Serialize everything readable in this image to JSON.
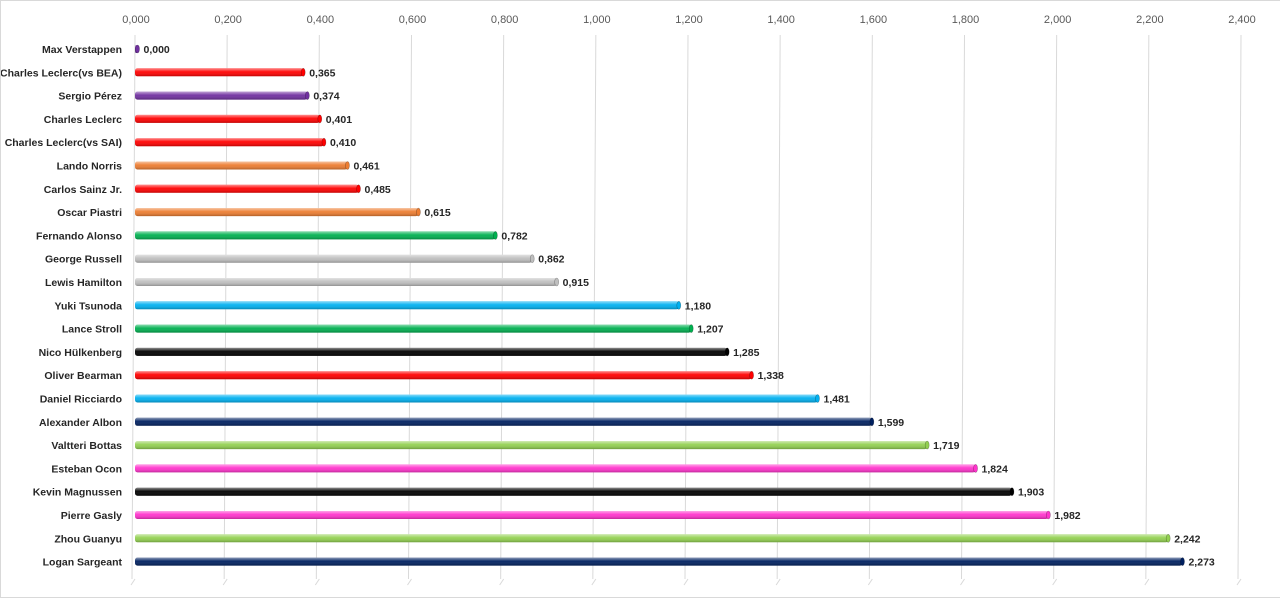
{
  "chart_data": {
    "type": "bar",
    "orientation": "horizontal",
    "title": "",
    "xlabel": "",
    "ylabel": "",
    "xlim": [
      0,
      2.4
    ],
    "xticks": [
      "0,000",
      "0,200",
      "0,400",
      "0,600",
      "0,800",
      "1,000",
      "1,200",
      "1,400",
      "1,600",
      "1,800",
      "2,000",
      "2,200",
      "2,400"
    ],
    "xtick_values": [
      0,
      0.2,
      0.4,
      0.6,
      0.8,
      1.0,
      1.2,
      1.4,
      1.6,
      1.8,
      2.0,
      2.2,
      2.4
    ],
    "x_axis_position": "top",
    "grid": true,
    "legend": "none",
    "categories": [
      "Max Verstappen",
      "Charles Leclerc(vs BEA)",
      "Sergio Pérez",
      "Charles Leclerc",
      "Charles Leclerc(vs SAI)",
      "Lando Norris",
      "Carlos Sainz Jr.",
      "Oscar Piastri",
      "Fernando Alonso",
      "George Russell",
      "Lewis Hamilton",
      "Yuki Tsunoda",
      "Lance Stroll",
      "Nico Hülkenberg",
      "Oliver Bearman",
      "Daniel Ricciardo",
      "Alexander Albon",
      "Valtteri Bottas",
      "Esteban Ocon",
      "Kevin Magnussen",
      "Pierre Gasly",
      "Zhou Guanyu",
      "Logan Sargeant"
    ],
    "values": [
      0.0,
      0.365,
      0.374,
      0.401,
      0.41,
      0.461,
      0.485,
      0.615,
      0.782,
      0.862,
      0.915,
      1.18,
      1.207,
      1.285,
      1.338,
      1.481,
      1.599,
      1.719,
      1.824,
      1.903,
      1.982,
      2.242,
      2.273
    ],
    "value_labels": [
      "0,000",
      "0,365",
      "0,374",
      "0,401",
      "0,410",
      "0,461",
      "0,485",
      "0,615",
      "0,782",
      "0,862",
      "0,915",
      "1,180",
      "1,207",
      "1,285",
      "1,338",
      "1,481",
      "1,599",
      "1,719",
      "1,824",
      "1,903",
      "1,982",
      "2,242",
      "2,273"
    ],
    "colors": [
      "#7030a0",
      "#ff0000",
      "#7030a0",
      "#ff0000",
      "#ff0000",
      "#ed7d31",
      "#ff0000",
      "#ed7d31",
      "#00b050",
      "#bfbfbf",
      "#bfbfbf",
      "#00b0f0",
      "#00b050",
      "#000000",
      "#ff0000",
      "#00b0f0",
      "#002060",
      "#92d050",
      "#ff33cc",
      "#000000",
      "#ff33cc",
      "#92d050",
      "#002060"
    ]
  }
}
